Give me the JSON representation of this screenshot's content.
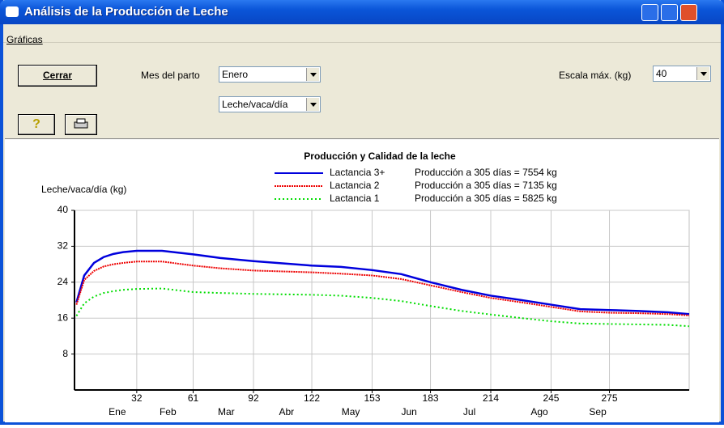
{
  "window": {
    "title": "Análisis de la Producción de Leche"
  },
  "menu": [
    "Gráficas"
  ],
  "controls": {
    "close_button": "Cerrar",
    "month_label": "Mes del parto",
    "month_value": "Enero",
    "measure_value": "Leche/vaca/día",
    "scale_label": "Escala máx. (kg)",
    "scale_value": "40"
  },
  "chart_data": {
    "type": "line",
    "title": "Producción y Calidad de la leche",
    "y_label": "Leche/vaca/día (kg)",
    "x": [
      1,
      5,
      10,
      15,
      20,
      25,
      32,
      45,
      61,
      75,
      92,
      107,
      122,
      137,
      153,
      168,
      183,
      199,
      214,
      230,
      245,
      260,
      275,
      290,
      305,
      316
    ],
    "xlim": [
      0,
      316
    ],
    "xticks": [
      32,
      61,
      92,
      122,
      153,
      183,
      214,
      245,
      275
    ],
    "x2ticks": [
      {
        "value": 22,
        "label": "Ene"
      },
      {
        "value": 48,
        "label": "Feb"
      },
      {
        "value": 78,
        "label": "Mar"
      },
      {
        "value": 109,
        "label": "Abr"
      },
      {
        "value": 142,
        "label": "May"
      },
      {
        "value": 172,
        "label": "Jun"
      },
      {
        "value": 203,
        "label": "Jul"
      },
      {
        "value": 239,
        "label": "Ago"
      },
      {
        "value": 269,
        "label": "Sep"
      }
    ],
    "ylim": [
      0,
      40
    ],
    "yticks": [
      8,
      16,
      24,
      32,
      40
    ],
    "grid": true,
    "series": [
      {
        "name": "Lactancia 3+",
        "note": "Producción a 305 días = 7554 kg",
        "color": "#0000dd",
        "line_style": "solid",
        "values": [
          19.5,
          25.5,
          28.3,
          29.6,
          30.3,
          30.7,
          31.0,
          31.0,
          30.2,
          29.4,
          28.7,
          28.2,
          27.7,
          27.4,
          26.7,
          25.8,
          24.0,
          22.3,
          21.0,
          20.0,
          19.0,
          18.0,
          17.8,
          17.6,
          17.3,
          16.9
        ]
      },
      {
        "name": "Lactancia 2",
        "note": "Producción a 305 días = 7135 kg",
        "color": "#ee0000",
        "line_style": "dense",
        "values": [
          19.0,
          24.5,
          26.5,
          27.5,
          28.0,
          28.3,
          28.6,
          28.6,
          27.7,
          27.1,
          26.6,
          26.4,
          26.2,
          25.9,
          25.5,
          24.7,
          23.3,
          21.8,
          20.5,
          19.5,
          18.5,
          17.5,
          17.2,
          17.1,
          16.9,
          16.6
        ]
      },
      {
        "name": "Lactancia 1",
        "note": "Producción a 305 días = 5825 kg",
        "color": "#00dd00",
        "line_style": "dotted",
        "values": [
          16.5,
          19.3,
          20.8,
          21.6,
          22.0,
          22.3,
          22.5,
          22.6,
          21.8,
          21.6,
          21.4,
          21.3,
          21.2,
          21.0,
          20.5,
          19.8,
          18.7,
          17.6,
          16.8,
          16.0,
          15.3,
          14.8,
          14.7,
          14.6,
          14.5,
          14.2
        ]
      }
    ]
  }
}
